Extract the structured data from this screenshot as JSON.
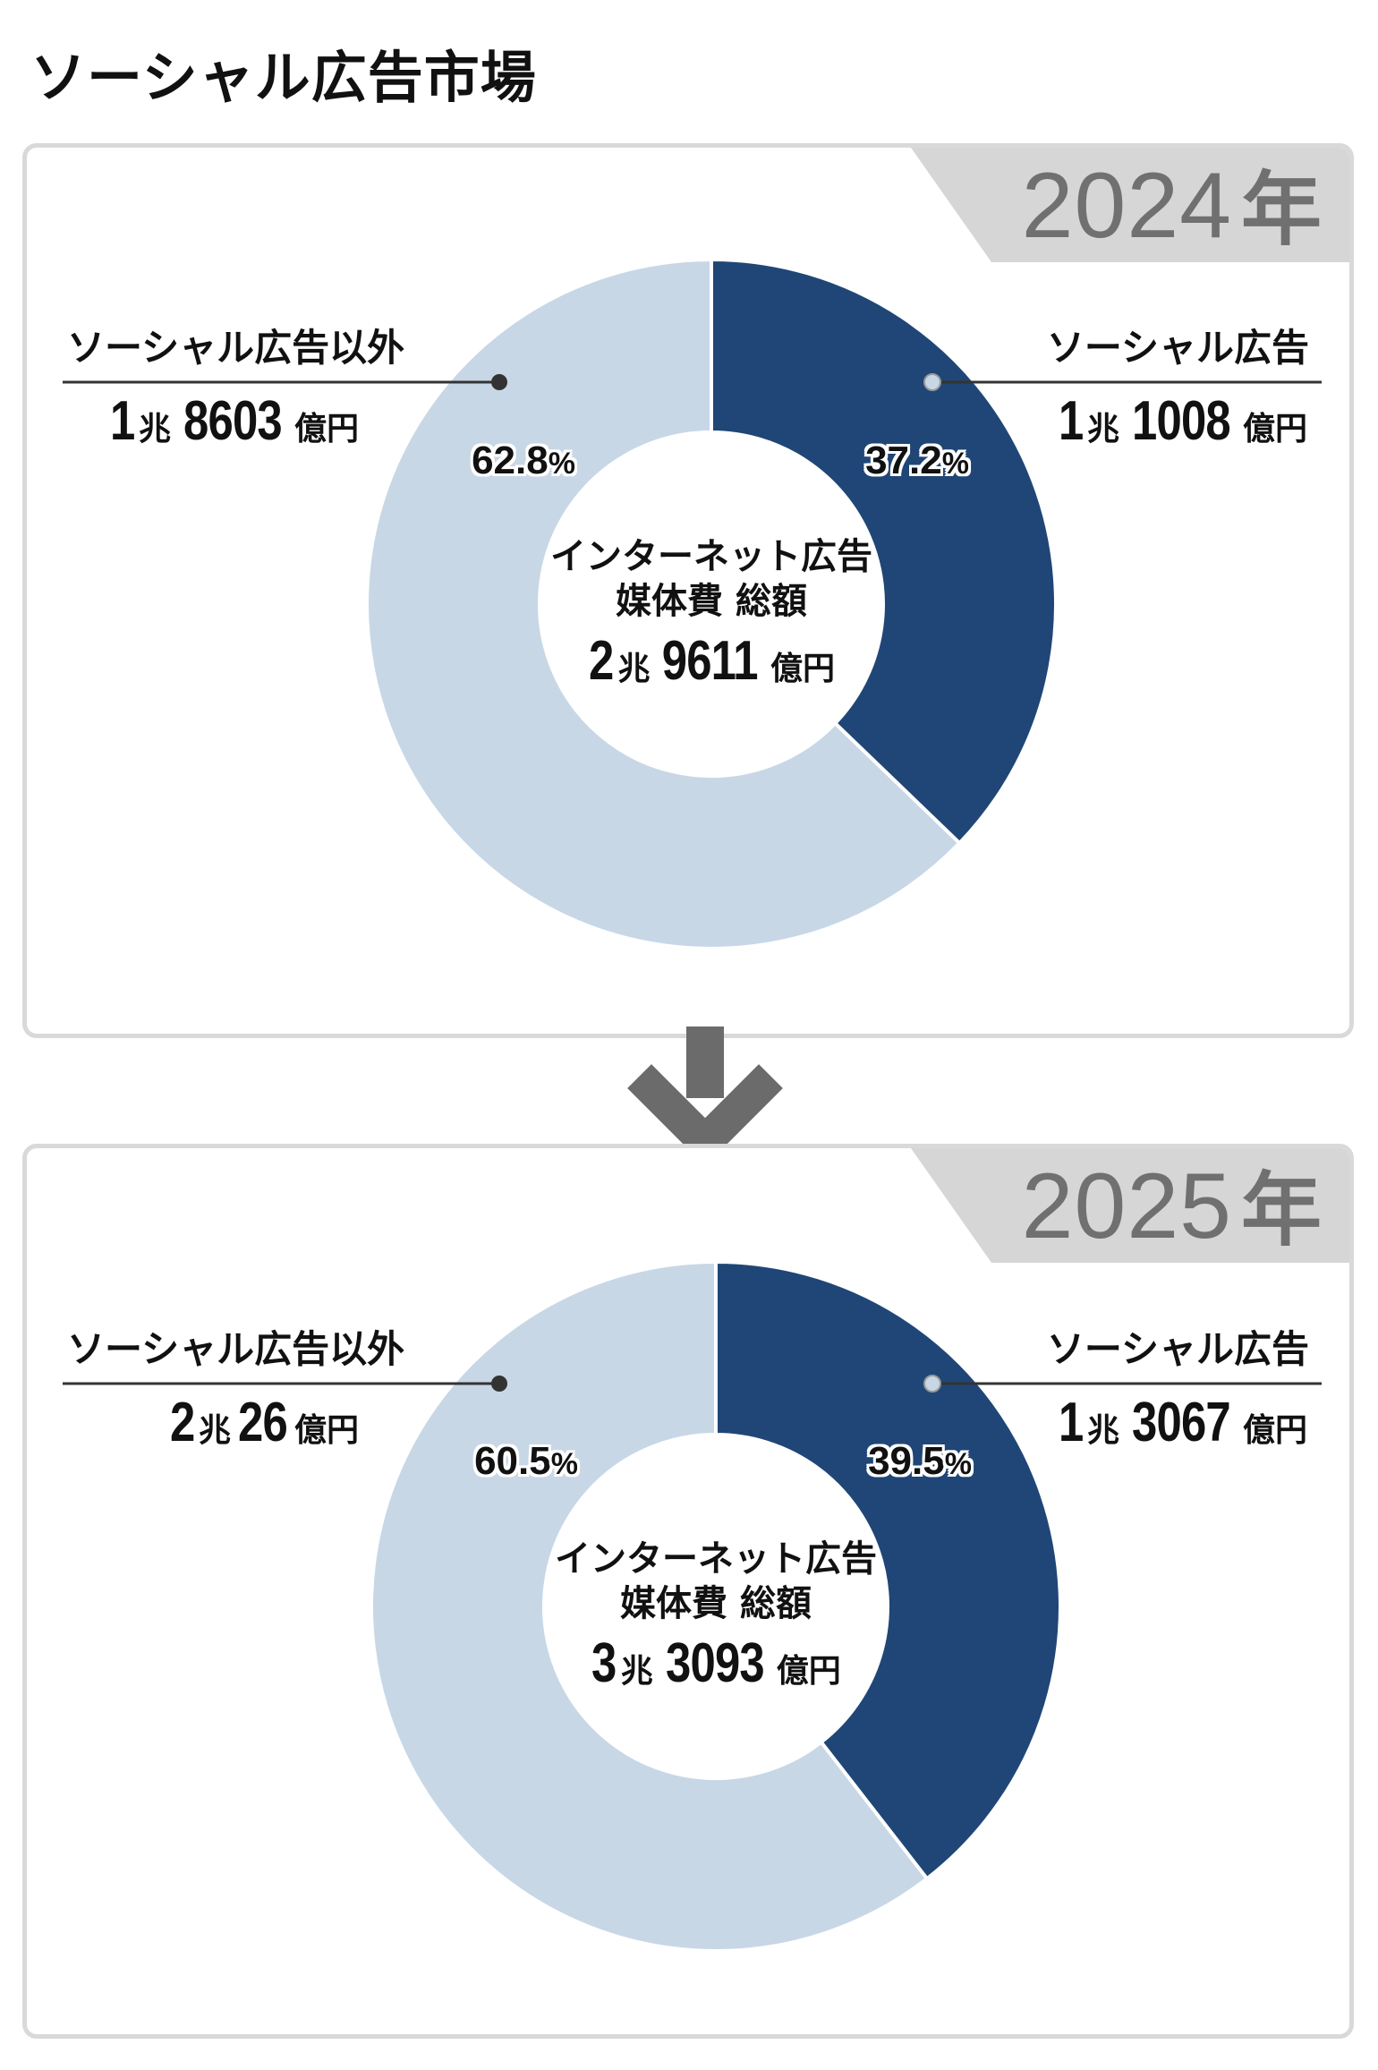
{
  "title": "ソーシャル広告市場",
  "arrow_icon": "arrow-down-icon",
  "colors": {
    "social": "#1f4676",
    "other": "#c8d7e6",
    "panel_border": "#d9d9d9",
    "year_tag": "#d6d6d6",
    "arrow": "#6b6b6b"
  },
  "panels": [
    {
      "year": "2024",
      "year_suffix": "年",
      "center": {
        "line1": "インターネット広告",
        "line2": "媒体費 総額",
        "cho": "2",
        "cho_unit": "兆",
        "oku": "9611",
        "oku_unit": "億円"
      },
      "left": {
        "label": "ソーシャル広告以外",
        "cho": "1",
        "cho_unit": "兆",
        "oku": "8603",
        "oku_unit": "億円",
        "pct": "62.8",
        "pct_sign": "%"
      },
      "right": {
        "label": "ソーシャル広告",
        "cho": "1",
        "cho_unit": "兆",
        "oku": "1008",
        "oku_unit": "億円",
        "pct": "37.2",
        "pct_sign": "%"
      }
    },
    {
      "year": "2025",
      "year_suffix": "年",
      "center": {
        "line1": "インターネット広告",
        "line2": "媒体費 総額",
        "cho": "3",
        "cho_unit": "兆",
        "oku": "3093",
        "oku_unit": "億円"
      },
      "left": {
        "label": "ソーシャル広告以外",
        "cho": "2",
        "cho_unit": "兆",
        "oku": "26",
        "oku_unit": "億円",
        "pct": "60.5",
        "pct_sign": "%"
      },
      "right": {
        "label": "ソーシャル広告",
        "cho": "1",
        "cho_unit": "兆",
        "oku": "3067",
        "oku_unit": "億円",
        "pct": "39.5",
        "pct_sign": "%"
      }
    }
  ],
  "chart_data": [
    {
      "type": "pie",
      "title": "2024年",
      "categories": [
        "ソーシャル広告",
        "ソーシャル広告以外"
      ],
      "values": [
        37.2,
        62.8
      ],
      "amounts_oku_yen": [
        11008,
        18603
      ],
      "total_oku_yen": 29611,
      "colors": [
        "#1f4676",
        "#c8d7e6"
      ]
    },
    {
      "type": "pie",
      "title": "2025年",
      "categories": [
        "ソーシャル広告",
        "ソーシャル広告以外"
      ],
      "values": [
        39.5,
        60.5
      ],
      "amounts_oku_yen": [
        13067,
        20026
      ],
      "total_oku_yen": 33093,
      "colors": [
        "#1f4676",
        "#c8d7e6"
      ]
    }
  ]
}
